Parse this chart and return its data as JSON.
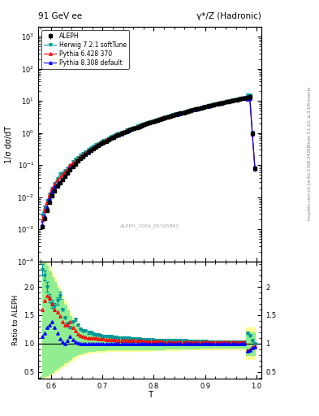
{
  "title_left": "91 GeV ee",
  "title_right": "γ*/Z (Hadronic)",
  "ylabel_main": "1/σ dσ/dT",
  "ylabel_ratio": "Ratio to ALEPH",
  "xlabel": "T",
  "right_label_top": "Rivet 3.1.10, ≥ 3.1M events",
  "right_label_bottom": "mcplots.cern.ch [arXiv:1306.3436]",
  "watermark": "ALEPH_2004_S5765862",
  "xlim": [
    0.575,
    1.01
  ],
  "ylim_main_log": [
    0.0001,
    2000
  ],
  "ylim_ratio": [
    0.38,
    2.45
  ],
  "ratio_yticks": [
    0.5,
    1.0,
    1.5,
    2.0
  ],
  "legend_entries": [
    "ALEPH",
    "Herwig 7.2.1 softTune",
    "Pythia 6.428 370",
    "Pythia 8.308 default"
  ],
  "aleph_color": "black",
  "herwig_color": "#009999",
  "pythia6_color": "red",
  "pythia8_color": "blue",
  "green_band_color": "#90EE90",
  "yellow_band_color": "#FFFF99",
  "T_data": [
    0.582,
    0.587,
    0.592,
    0.597,
    0.602,
    0.607,
    0.612,
    0.617,
    0.622,
    0.627,
    0.632,
    0.637,
    0.642,
    0.647,
    0.652,
    0.657,
    0.662,
    0.667,
    0.672,
    0.677,
    0.682,
    0.687,
    0.692,
    0.697,
    0.702,
    0.707,
    0.712,
    0.717,
    0.722,
    0.727,
    0.732,
    0.737,
    0.742,
    0.747,
    0.752,
    0.757,
    0.762,
    0.767,
    0.772,
    0.777,
    0.782,
    0.787,
    0.792,
    0.797,
    0.802,
    0.807,
    0.812,
    0.817,
    0.822,
    0.827,
    0.832,
    0.837,
    0.842,
    0.847,
    0.852,
    0.857,
    0.862,
    0.867,
    0.872,
    0.877,
    0.882,
    0.887,
    0.892,
    0.897,
    0.902,
    0.907,
    0.912,
    0.917,
    0.922,
    0.927,
    0.932,
    0.937,
    0.942,
    0.947,
    0.952,
    0.957,
    0.962,
    0.967,
    0.972,
    0.977,
    0.982,
    0.987,
    0.992,
    0.997
  ],
  "aleph_vals": [
    0.0012,
    0.0022,
    0.0038,
    0.0068,
    0.011,
    0.016,
    0.022,
    0.028,
    0.036,
    0.046,
    0.058,
    0.073,
    0.09,
    0.11,
    0.133,
    0.158,
    0.186,
    0.216,
    0.25,
    0.285,
    0.323,
    0.364,
    0.408,
    0.455,
    0.506,
    0.56,
    0.618,
    0.68,
    0.745,
    0.813,
    0.885,
    0.96,
    1.04,
    1.122,
    1.21,
    1.302,
    1.398,
    1.5,
    1.607,
    1.718,
    1.835,
    1.958,
    2.085,
    2.218,
    2.357,
    2.502,
    2.653,
    2.81,
    2.974,
    3.145,
    3.322,
    3.506,
    3.698,
    3.896,
    4.102,
    4.316,
    4.538,
    4.768,
    5.006,
    5.253,
    5.509,
    5.774,
    6.048,
    6.332,
    6.626,
    6.93,
    7.244,
    7.569,
    7.905,
    8.252,
    8.61,
    8.979,
    9.36,
    9.752,
    10.16,
    10.57,
    11.0,
    11.44,
    11.9,
    12.38,
    12.88,
    13.4,
    1.0,
    0.08
  ],
  "herwig_ratio": [
    2.3,
    2.2,
    2.0,
    1.8,
    1.7,
    1.65,
    1.75,
    1.85,
    1.6,
    1.45,
    1.35,
    1.28,
    1.38,
    1.42,
    1.32,
    1.26,
    1.22,
    1.22,
    1.19,
    1.19,
    1.17,
    1.16,
    1.15,
    1.14,
    1.13,
    1.13,
    1.12,
    1.12,
    1.11,
    1.11,
    1.1,
    1.1,
    1.09,
    1.09,
    1.09,
    1.08,
    1.08,
    1.08,
    1.08,
    1.07,
    1.07,
    1.07,
    1.07,
    1.07,
    1.06,
    1.06,
    1.06,
    1.06,
    1.06,
    1.06,
    1.05,
    1.05,
    1.05,
    1.05,
    1.05,
    1.05,
    1.05,
    1.04,
    1.04,
    1.04,
    1.04,
    1.04,
    1.04,
    1.04,
    1.04,
    1.03,
    1.03,
    1.03,
    1.03,
    1.03,
    1.03,
    1.03,
    1.03,
    1.03,
    1.03,
    1.03,
    1.03,
    1.03,
    1.03,
    1.03,
    1.18,
    1.14,
    1.05,
    1.0
  ],
  "pythia6_ratio": [
    1.6,
    1.75,
    1.85,
    1.8,
    1.7,
    1.6,
    1.55,
    1.48,
    1.38,
    1.32,
    1.32,
    1.38,
    1.28,
    1.22,
    1.17,
    1.14,
    1.12,
    1.11,
    1.1,
    1.1,
    1.09,
    1.09,
    1.08,
    1.08,
    1.08,
    1.07,
    1.07,
    1.07,
    1.07,
    1.06,
    1.06,
    1.06,
    1.06,
    1.05,
    1.05,
    1.05,
    1.05,
    1.05,
    1.05,
    1.04,
    1.04,
    1.04,
    1.04,
    1.04,
    1.04,
    1.04,
    1.04,
    1.03,
    1.03,
    1.03,
    1.03,
    1.03,
    1.03,
    1.03,
    1.03,
    1.03,
    1.03,
    1.03,
    1.03,
    1.03,
    1.02,
    1.02,
    1.02,
    1.02,
    1.02,
    1.02,
    1.02,
    1.02,
    1.02,
    1.02,
    1.02,
    1.02,
    1.02,
    1.02,
    1.02,
    1.02,
    1.02,
    1.02,
    1.02,
    1.02,
    0.88,
    0.9,
    0.94,
    0.96
  ],
  "pythia8_ratio": [
    1.12,
    1.18,
    1.28,
    1.33,
    1.38,
    1.28,
    1.18,
    1.08,
    1.02,
    0.99,
    1.06,
    1.12,
    1.07,
    1.03,
    1.01,
    1.0,
    1.0,
    1.0,
    0.99,
    0.99,
    0.99,
    0.99,
    0.99,
    0.99,
    0.99,
    0.99,
    0.99,
    0.99,
    0.99,
    0.99,
    0.99,
    0.99,
    0.99,
    0.99,
    0.99,
    0.99,
    0.99,
    0.99,
    0.99,
    0.99,
    0.99,
    0.99,
    0.99,
    0.99,
    0.99,
    0.99,
    0.99,
    0.99,
    0.99,
    0.99,
    0.99,
    0.99,
    0.99,
    0.99,
    0.99,
    0.99,
    0.99,
    0.99,
    0.99,
    0.99,
    0.99,
    0.99,
    0.99,
    0.99,
    0.99,
    0.99,
    0.99,
    0.99,
    0.99,
    0.99,
    0.99,
    0.99,
    0.99,
    0.99,
    0.99,
    0.99,
    0.99,
    0.99,
    0.99,
    0.99,
    0.86,
    0.88,
    0.92,
    0.94
  ],
  "green_band_lo": [
    0.4,
    0.42,
    0.44,
    0.47,
    0.5,
    0.53,
    0.57,
    0.6,
    0.63,
    0.66,
    0.7,
    0.73,
    0.76,
    0.79,
    0.81,
    0.83,
    0.84,
    0.85,
    0.86,
    0.87,
    0.87,
    0.88,
    0.88,
    0.88,
    0.88,
    0.89,
    0.89,
    0.89,
    0.89,
    0.89,
    0.89,
    0.9,
    0.9,
    0.9,
    0.9,
    0.9,
    0.9,
    0.9,
    0.9,
    0.9,
    0.9,
    0.9,
    0.9,
    0.9,
    0.9,
    0.9,
    0.9,
    0.9,
    0.91,
    0.91,
    0.91,
    0.91,
    0.91,
    0.91,
    0.91,
    0.91,
    0.91,
    0.91,
    0.91,
    0.91,
    0.91,
    0.91,
    0.92,
    0.92,
    0.92,
    0.92,
    0.92,
    0.92,
    0.92,
    0.92,
    0.92,
    0.92,
    0.92,
    0.93,
    0.93,
    0.93,
    0.93,
    0.93,
    0.93,
    0.93,
    0.8,
    0.8,
    0.8,
    0.8
  ],
  "green_band_hi": [
    2.5,
    2.45,
    2.38,
    2.28,
    2.18,
    2.08,
    1.98,
    1.88,
    1.78,
    1.68,
    1.58,
    1.48,
    1.4,
    1.33,
    1.27,
    1.23,
    1.2,
    1.18,
    1.16,
    1.15,
    1.14,
    1.13,
    1.12,
    1.12,
    1.11,
    1.11,
    1.1,
    1.1,
    1.1,
    1.09,
    1.09,
    1.09,
    1.08,
    1.08,
    1.08,
    1.08,
    1.07,
    1.07,
    1.07,
    1.07,
    1.07,
    1.06,
    1.06,
    1.06,
    1.06,
    1.06,
    1.06,
    1.05,
    1.05,
    1.05,
    1.05,
    1.05,
    1.05,
    1.05,
    1.04,
    1.04,
    1.04,
    1.04,
    1.04,
    1.04,
    1.04,
    1.04,
    1.04,
    1.03,
    1.03,
    1.03,
    1.03,
    1.03,
    1.03,
    1.03,
    1.03,
    1.03,
    1.03,
    1.03,
    1.03,
    1.02,
    1.02,
    1.02,
    1.02,
    1.02,
    1.2,
    1.2,
    1.2,
    1.2
  ],
  "yellow_band_lo": [
    0.38,
    0.39,
    0.41,
    0.43,
    0.46,
    0.49,
    0.52,
    0.55,
    0.58,
    0.61,
    0.65,
    0.68,
    0.71,
    0.74,
    0.77,
    0.79,
    0.81,
    0.82,
    0.83,
    0.84,
    0.84,
    0.85,
    0.85,
    0.85,
    0.85,
    0.86,
    0.86,
    0.86,
    0.86,
    0.86,
    0.86,
    0.87,
    0.87,
    0.87,
    0.87,
    0.87,
    0.87,
    0.87,
    0.87,
    0.87,
    0.87,
    0.87,
    0.87,
    0.87,
    0.88,
    0.88,
    0.88,
    0.88,
    0.88,
    0.88,
    0.88,
    0.88,
    0.88,
    0.88,
    0.88,
    0.89,
    0.89,
    0.89,
    0.89,
    0.89,
    0.89,
    0.89,
    0.89,
    0.89,
    0.89,
    0.89,
    0.89,
    0.89,
    0.89,
    0.89,
    0.89,
    0.89,
    0.89,
    0.89,
    0.89,
    0.89,
    0.89,
    0.89,
    0.89,
    0.89,
    0.72,
    0.72,
    0.72,
    0.72
  ],
  "yellow_band_hi": [
    2.6,
    2.52,
    2.44,
    2.34,
    2.24,
    2.14,
    2.04,
    1.94,
    1.84,
    1.74,
    1.64,
    1.54,
    1.46,
    1.39,
    1.33,
    1.29,
    1.26,
    1.23,
    1.21,
    1.19,
    1.18,
    1.17,
    1.16,
    1.15,
    1.15,
    1.14,
    1.14,
    1.13,
    1.13,
    1.12,
    1.12,
    1.12,
    1.11,
    1.11,
    1.11,
    1.1,
    1.1,
    1.1,
    1.1,
    1.09,
    1.09,
    1.09,
    1.09,
    1.08,
    1.08,
    1.08,
    1.08,
    1.08,
    1.07,
    1.07,
    1.07,
    1.07,
    1.07,
    1.07,
    1.06,
    1.06,
    1.06,
    1.06,
    1.06,
    1.06,
    1.05,
    1.05,
    1.05,
    1.05,
    1.05,
    1.05,
    1.05,
    1.05,
    1.04,
    1.04,
    1.04,
    1.04,
    1.04,
    1.04,
    1.04,
    1.04,
    1.03,
    1.03,
    1.03,
    1.03,
    1.28,
    1.28,
    1.28,
    1.28
  ]
}
